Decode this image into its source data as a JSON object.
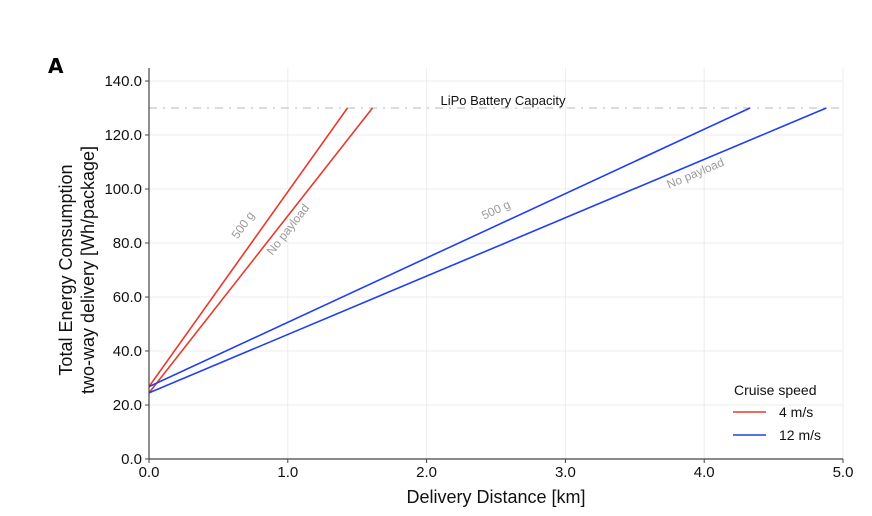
{
  "panel_label": "A",
  "chart_data": {
    "type": "line",
    "title": "",
    "xlabel": "Delivery Distance [km]",
    "ylabel_lines": [
      "Total Energy Consumption",
      "two-way delivery [Wh/package]"
    ],
    "xlim": [
      0,
      5
    ],
    "ylim": [
      0,
      140
    ],
    "xticks": [
      0,
      1,
      2,
      3,
      4,
      5
    ],
    "xtick_labels": [
      "0.0",
      "1.0",
      "2.0",
      "3.0",
      "4.0",
      "5.0"
    ],
    "yticks": [
      0,
      20,
      40,
      60,
      80,
      100,
      120,
      140
    ],
    "ytick_labels": [
      "0.0",
      "20.0",
      "40.0",
      "60.0",
      "80.0",
      "100.0",
      "120.0",
      "140.0"
    ],
    "grid": true,
    "reference_line": {
      "y": 130,
      "label": "LiPo Battery Capacity",
      "color": "#c8c8c8",
      "style": "dash-dot"
    },
    "series": [
      {
        "name": "4 m/s, 500 g",
        "speed": "4 m/s",
        "payload_label": "500 g",
        "color": "#e8392b",
        "x": [
          0,
          1.43
        ],
        "y": [
          26.8,
          130
        ]
      },
      {
        "name": "4 m/s, No payload",
        "speed": "4 m/s",
        "payload_label": "No payload",
        "color": "#e8392b",
        "x": [
          0,
          1.61
        ],
        "y": [
          24.5,
          130
        ]
      },
      {
        "name": "12 m/s, 500 g",
        "speed": "12 m/s",
        "payload_label": "500 g",
        "color": "#1f3ff0",
        "x": [
          0,
          4.33
        ],
        "y": [
          26.8,
          130
        ]
      },
      {
        "name": "12 m/s, No payload",
        "speed": "12 m/s",
        "payload_label": "No payload",
        "color": "#1f3ff0",
        "x": [
          0,
          4.88
        ],
        "y": [
          24.5,
          130
        ]
      }
    ],
    "legend": {
      "title": "Cruise speed",
      "placement": "bottom-right",
      "entries": [
        {
          "label": "4 m/s",
          "color": "#e8392b"
        },
        {
          "label": "12 m/s",
          "color": "#1f3ff0"
        }
      ]
    }
  }
}
